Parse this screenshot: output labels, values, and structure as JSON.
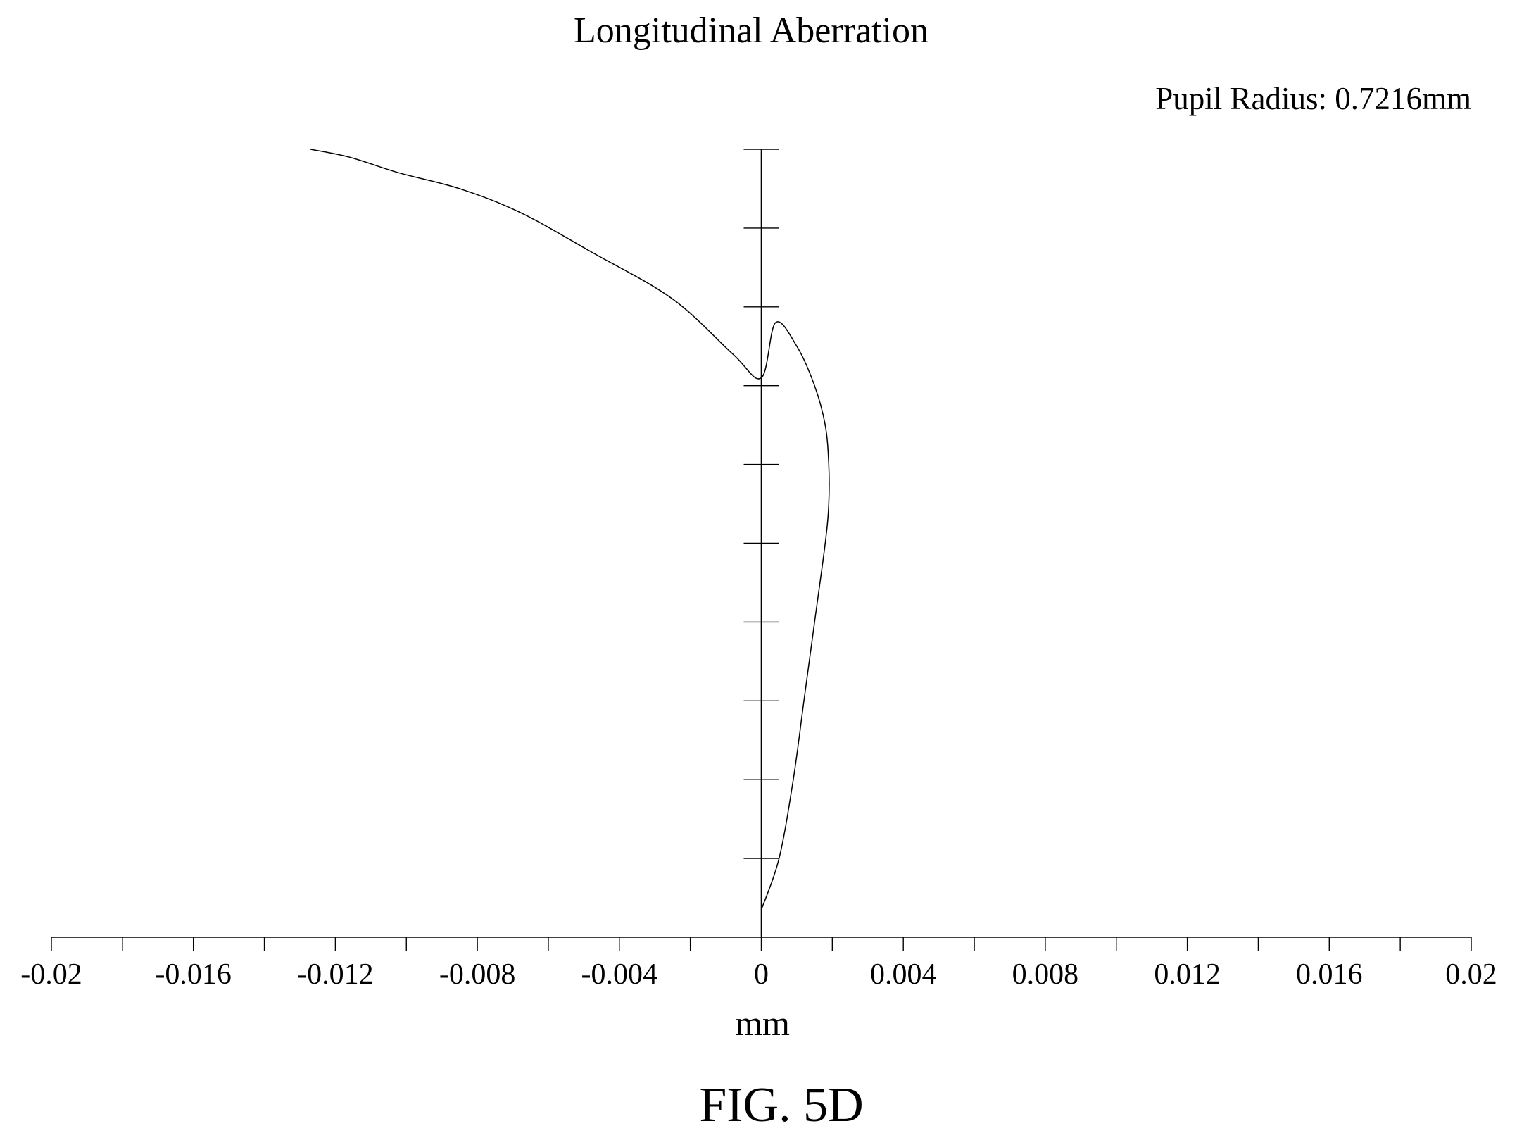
{
  "figure_label": "FIG. 5D",
  "chart_data": {
    "type": "line",
    "title": "Longitudinal Aberration",
    "annotation": "Pupil Radius: 0.7216mm",
    "xlabel": "mm",
    "ylabel": "",
    "xlim": [
      -0.02,
      0.02
    ],
    "ylim": [
      0,
      1
    ],
    "x_ticks": [
      -0.02,
      -0.016,
      -0.012,
      -0.008,
      -0.004,
      0,
      0.004,
      0.008,
      0.012,
      0.016,
      0.02
    ],
    "x_tick_labels": [
      "-0.02",
      "-0.016",
      "-0.012",
      "-0.008",
      "-0.004",
      "0",
      "0.004",
      "0.008",
      "0.012",
      "0.016",
      "0.02"
    ],
    "x_minor_ticks": [
      -0.018,
      -0.014,
      -0.01,
      -0.006,
      -0.002,
      0.002,
      0.006,
      0.01,
      0.014,
      0.018
    ],
    "y_ticks": [
      0.1,
      0.2,
      0.3,
      0.4,
      0.5,
      0.6,
      0.7,
      0.8,
      0.9,
      1.0
    ],
    "grid": false,
    "series": [
      {
        "color": "#000000",
        "x": [
          0.0,
          0.0005,
          0.0009,
          0.0012,
          0.0015,
          0.0018,
          0.0019,
          0.0019,
          0.0018,
          0.0015,
          0.001,
          0.0004,
          0.0,
          -0.0008,
          -0.0025,
          -0.0048,
          -0.0068,
          -0.0085,
          -0.0102,
          -0.0116,
          -0.0127
        ],
        "y": [
          0.035,
          0.1,
          0.2,
          0.3,
          0.4,
          0.5,
          0.55,
          0.6,
          0.65,
          0.7,
          0.75,
          0.78,
          0.71,
          0.74,
          0.81,
          0.87,
          0.92,
          0.95,
          0.97,
          0.99,
          1.0
        ]
      }
    ]
  }
}
